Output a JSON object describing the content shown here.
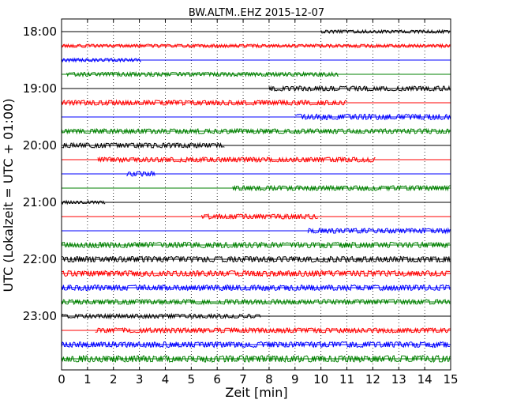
{
  "chart_data": {
    "type": "line",
    "title": "BW.ALTM..EHZ 2015-12-07",
    "xlabel": "Zeit  [min]",
    "ylabel": "UTC (Lokalzeit = UTC + 01:00)",
    "xlim": [
      0,
      15
    ],
    "xticks": [
      "0",
      "1",
      "2",
      "3",
      "4",
      "5",
      "6",
      "7",
      "8",
      "9",
      "10",
      "11",
      "12",
      "13",
      "14",
      "15"
    ],
    "yticks": [
      "18:00",
      "19:00",
      "20:00",
      "21:00",
      "22:00",
      "23:00"
    ],
    "grid": "vertical dotted",
    "colors": {
      "black": "#000000",
      "red": "#ff0000",
      "blue": "#0000ff",
      "green": "#008000"
    },
    "series": [
      {
        "row": "18:00",
        "color": "black",
        "segments": [
          [
            10.0,
            15.0,
            2.0
          ]
        ]
      },
      {
        "row": "18:15",
        "color": "red",
        "segments": [
          [
            0.0,
            15.0,
            2.0
          ]
        ]
      },
      {
        "row": "18:30",
        "color": "blue",
        "segments": [
          [
            0.0,
            3.1,
            2.0
          ]
        ]
      },
      {
        "row": "18:45",
        "color": "green",
        "segments": [
          [
            0.2,
            10.7,
            2.5
          ]
        ]
      },
      {
        "row": "19:00",
        "color": "black",
        "segments": [
          [
            8.0,
            15.0,
            3.0
          ]
        ]
      },
      {
        "row": "19:15",
        "color": "red",
        "segments": [
          [
            0.0,
            11.0,
            3.0
          ]
        ]
      },
      {
        "row": "19:30",
        "color": "blue",
        "segments": [
          [
            9.0,
            15.0,
            3.5
          ]
        ]
      },
      {
        "row": "19:45",
        "color": "green",
        "segments": [
          [
            0.0,
            15.0,
            3.0
          ]
        ]
      },
      {
        "row": "20:00",
        "color": "black",
        "segments": [
          [
            0.0,
            6.3,
            3.0
          ]
        ]
      },
      {
        "row": "20:15",
        "color": "red",
        "segments": [
          [
            1.4,
            12.1,
            3.0
          ]
        ]
      },
      {
        "row": "20:30",
        "color": "blue",
        "segments": [
          [
            2.5,
            3.6,
            3.0
          ]
        ]
      },
      {
        "row": "20:45",
        "color": "green",
        "segments": [
          [
            6.6,
            15.0,
            3.0
          ]
        ]
      },
      {
        "row": "21:00",
        "color": "black",
        "segments": [
          [
            0.0,
            1.7,
            2.0
          ]
        ]
      },
      {
        "row": "21:15",
        "color": "red",
        "segments": [
          [
            5.4,
            9.9,
            3.0
          ]
        ]
      },
      {
        "row": "21:30",
        "color": "blue",
        "segments": [
          [
            9.5,
            15.0,
            3.0
          ]
        ]
      },
      {
        "row": "21:45",
        "color": "green",
        "segments": [
          [
            0.0,
            15.0,
            3.5
          ]
        ]
      },
      {
        "row": "22:00",
        "color": "black",
        "segments": [
          [
            0.0,
            15.0,
            3.5
          ]
        ]
      },
      {
        "row": "22:15",
        "color": "red",
        "segments": [
          [
            0.0,
            15.0,
            3.5
          ]
        ]
      },
      {
        "row": "22:30",
        "color": "blue",
        "segments": [
          [
            0.0,
            15.0,
            3.5
          ]
        ]
      },
      {
        "row": "22:45",
        "color": "green",
        "segments": [
          [
            0.0,
            15.0,
            3.0
          ]
        ]
      },
      {
        "row": "23:00",
        "color": "black",
        "segments": [
          [
            0.0,
            7.7,
            2.5
          ]
        ]
      },
      {
        "row": "23:15",
        "color": "red",
        "segments": [
          [
            1.3,
            15.0,
            3.0
          ]
        ]
      },
      {
        "row": "23:30",
        "color": "blue",
        "segments": [
          [
            0.0,
            15.0,
            3.5
          ]
        ]
      },
      {
        "row": "23:45",
        "color": "green",
        "segments": [
          [
            0.0,
            15.0,
            4.0
          ]
        ]
      }
    ]
  }
}
